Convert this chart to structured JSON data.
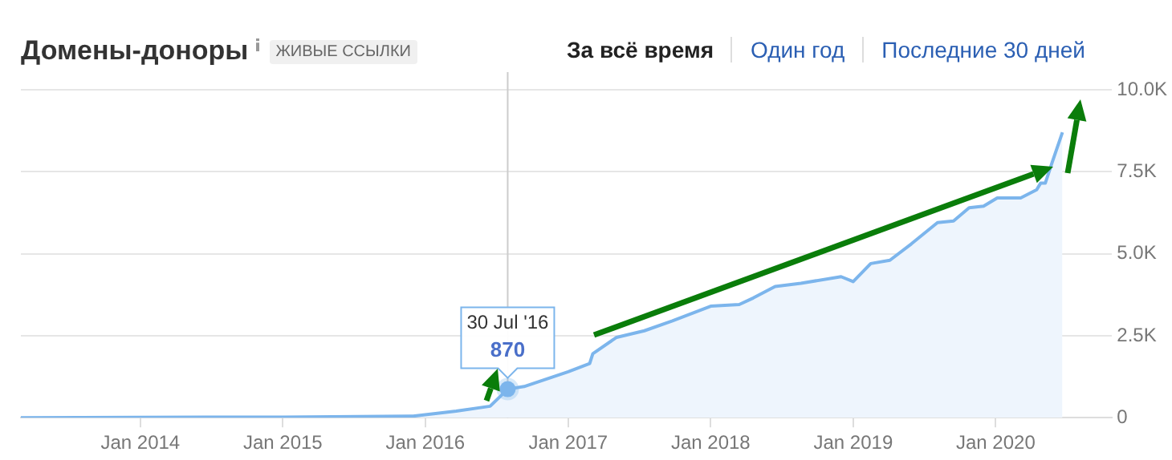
{
  "chart_data": {
    "type": "area",
    "title": "Домены-доноры",
    "subtitle": "ЖИВЫЕ ССЫЛКИ",
    "annotations": [
      "За всё время",
      "Один год",
      "Последние 30 дней",
      {
        "text": "30 Jul '16",
        "x": "2016-07-30",
        "y": 870
      },
      {
        "text": "870",
        "x": "2016-07-30",
        "y": 870
      }
    ],
    "x": [
      "2013-03-01",
      "2014-01-01",
      "2015-01-01",
      "2015-12-01",
      "2016-03-20",
      "2016-06-15",
      "2016-07-30",
      "2016-09-10",
      "2017-01-01",
      "2017-02-25",
      "2017-03-05",
      "2017-05-05",
      "2017-07-15",
      "2017-09-25",
      "2018-01-01",
      "2018-03-15",
      "2018-04-20",
      "2018-06-15",
      "2018-08-20",
      "2018-12-01",
      "2019-01-01",
      "2019-02-15",
      "2019-04-05",
      "2019-05-30",
      "2019-08-05",
      "2019-09-15",
      "2019-10-25",
      "2019-12-01",
      "2020-01-05",
      "2020-03-05",
      "2020-04-15",
      "2020-04-25",
      "2020-05-07",
      "2020-05-25",
      "2020-06-20"
    ],
    "series": [
      {
        "color": "#7cb5ec",
        "values": [
          0,
          10,
          20,
          50,
          200,
          350,
          870,
          950,
          1400,
          1650,
          1950,
          2450,
          2650,
          2950,
          3400,
          3450,
          3650,
          4000,
          4100,
          4300,
          4150,
          4700,
          4800,
          5300,
          5950,
          6000,
          6400,
          6450,
          6700,
          6700,
          6950,
          7150,
          7150,
          7800,
          8700
        ]
      }
    ],
    "xlim": [
      "2013-03-01",
      "2020-10-25"
    ],
    "xticks": [
      {
        "value": "2014-01-01",
        "label": "Jan 2014"
      },
      {
        "value": "2015-01-01",
        "label": "Jan 2015"
      },
      {
        "value": "2016-01-01",
        "label": "Jan 2016"
      },
      {
        "value": "2017-01-01",
        "label": "Jan 2017"
      },
      {
        "value": "2018-01-01",
        "label": "Jan 2018"
      },
      {
        "value": "2019-01-01",
        "label": "Jan 2019"
      },
      {
        "value": "2020-01-01",
        "label": "Jan 2020"
      }
    ],
    "ylim": [
      0,
      10000
    ],
    "yticks": [
      0,
      {
        "value": 2500,
        "label": "2.5K"
      },
      {
        "value": 5000,
        "label": "5.0K"
      },
      {
        "value": 7500,
        "label": "7.5K"
      },
      {
        "value": 10000,
        "label": "10.0K"
      }
    ],
    "ref_lines": [
      {
        "axis": "x",
        "value": "2016-07-30",
        "color": "#cccccc"
      }
    ],
    "grid": "y",
    "legend": false,
    "marker": "none",
    "line_style": "solid"
  }
}
